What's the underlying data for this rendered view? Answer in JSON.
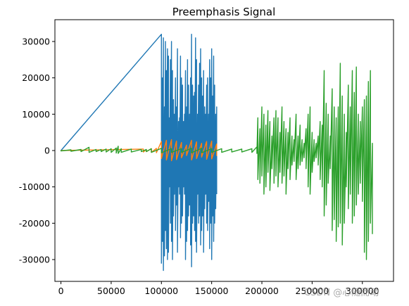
{
  "chart_data": {
    "type": "line",
    "title": "Preemphasis Signal",
    "xlabel": "",
    "ylabel": "",
    "xlim": [
      -6000,
      331000
    ],
    "ylim": [
      -36000,
      36000
    ],
    "x_ticks": [
      0,
      50000,
      100000,
      150000,
      200000,
      250000,
      300000
    ],
    "y_ticks": [
      -30000,
      -20000,
      -10000,
      0,
      10000,
      20000,
      30000
    ],
    "grid": false,
    "legend": "none",
    "series": [
      {
        "color": "#1f77b4",
        "x": [
          0,
          100000,
          101000,
          102000,
          103000,
          104000,
          105000,
          106000,
          107000,
          108000,
          109000,
          110000,
          111000,
          112000,
          113000,
          114000,
          115000,
          116000,
          117000,
          118000,
          119000,
          120000,
          121000,
          122000,
          123000,
          124000,
          125000,
          126000,
          127000,
          128000,
          129000,
          130000,
          131000,
          132000,
          133000,
          134000,
          135000,
          136000,
          137000,
          138000,
          139000,
          140000,
          141000,
          142000,
          143000,
          144000,
          145000,
          146000,
          147000,
          148000,
          149000,
          150000,
          151000,
          152000,
          153000,
          154000,
          155000
        ],
        "upper": [
          0,
          32000,
          20000,
          31000,
          12000,
          30000,
          22000,
          28000,
          26000,
          9000,
          25000,
          30000,
          22000,
          14000,
          10000,
          20000,
          12000,
          28000,
          8000,
          9000,
          26000,
          20000,
          18000,
          8000,
          10000,
          22000,
          12000,
          25000,
          18000,
          10000,
          20000,
          32000,
          18000,
          15000,
          16000,
          31000,
          25000,
          10000,
          18000,
          24000,
          28000,
          20000,
          15000,
          22000,
          12000,
          10000,
          18000,
          20000,
          10000,
          25000,
          20000,
          28000,
          15000,
          26000,
          18000,
          10000,
          12000
        ],
        "lower": [
          0,
          -31000,
          -25000,
          -33000,
          -29000,
          -22000,
          -27000,
          -30000,
          -28000,
          -10000,
          -20000,
          -25000,
          -30000,
          -18000,
          -12000,
          -22000,
          -15000,
          -28000,
          -10000,
          -12000,
          -24000,
          -20000,
          -18000,
          -10000,
          -12000,
          -30000,
          -25000,
          -22000,
          -18000,
          -15000,
          -26000,
          -32000,
          -20000,
          -18000,
          -22000,
          -25000,
          -28000,
          -12000,
          -20000,
          -18000,
          -26000,
          -22000,
          -18000,
          -28000,
          -16000,
          -12000,
          -20000,
          -22000,
          -14000,
          -27000,
          -20000,
          -30000,
          -18000,
          -25000,
          -20000,
          -16000,
          -12000
        ]
      },
      {
        "color": "#ff7f0e",
        "x": [
          0,
          82000,
          85000,
          90000,
          95000,
          100000,
          105000,
          110000,
          115000,
          120000,
          125000,
          130000,
          135000,
          140000,
          145000,
          150000,
          155000
        ],
        "upper": [
          0,
          400,
          300,
          500,
          600,
          2500,
          2800,
          3000,
          2600,
          2200,
          1500,
          2800,
          2400,
          2000,
          2500,
          2600,
          1800
        ],
        "lower": [
          0,
          -400,
          -300,
          -500,
          -600,
          -2200,
          -2600,
          -2800,
          -2500,
          -2000,
          -1400,
          -2600,
          -2200,
          -1800,
          -2400,
          -2300,
          -1500
        ]
      },
      {
        "color": "#2ca02c",
        "x": [
          0,
          10000,
          20000,
          28000,
          35000,
          40000,
          45000,
          50000,
          55000,
          57000,
          60000,
          70000,
          80000,
          85000,
          90000,
          100000,
          110000,
          120000,
          130000,
          140000,
          150000,
          160000,
          170000,
          180000,
          190000,
          195000,
          196000,
          198000,
          200000,
          202000,
          204000,
          206000,
          208000,
          210000,
          212000,
          214000,
          216000,
          218000,
          220000,
          222000,
          224000,
          226000,
          228000,
          230000,
          232000,
          234000,
          236000,
          238000,
          240000,
          242000,
          244000,
          246000,
          248000,
          250000,
          252000,
          254000,
          256000,
          258000,
          260000,
          262000,
          264000,
          266000,
          268000,
          270000,
          272000,
          274000,
          276000,
          278000,
          280000,
          282000,
          284000,
          286000,
          288000,
          290000,
          292000,
          294000,
          296000,
          298000,
          300000,
          302000,
          304000,
          306000,
          308000,
          310000
        ],
        "upper": [
          100,
          200,
          300,
          900,
          300,
          300,
          400,
          500,
          700,
          1200,
          500,
          400,
          300,
          300,
          500,
          600,
          500,
          500,
          600,
          600,
          500,
          500,
          400,
          400,
          500,
          1000,
          9000,
          6000,
          12000,
          10000,
          7000,
          11000,
          8000,
          4000,
          9000,
          11000,
          9000,
          5000,
          12000,
          8000,
          6000,
          5000,
          9000,
          4000,
          3000,
          10000,
          4000,
          7000,
          3000,
          2000,
          6000,
          10000,
          12000,
          5000,
          3000,
          2000,
          4000,
          8000,
          7000,
          22000,
          13000,
          10000,
          4000,
          17000,
          12000,
          9000,
          12000,
          24000,
          15000,
          10000,
          5000,
          18000,
          12000,
          22000,
          16000,
          23000,
          10000,
          8000,
          12000,
          14000,
          15000,
          19000,
          22000,
          2000
        ],
        "lower": [
          -100,
          -200,
          -300,
          -500,
          -300,
          -300,
          -400,
          -500,
          -700,
          -800,
          -500,
          -400,
          -300,
          -300,
          -500,
          -600,
          -500,
          -500,
          -600,
          -600,
          -500,
          -500,
          -400,
          -400,
          -500,
          -800,
          -8000,
          -9000,
          -7000,
          -12000,
          -10000,
          -6000,
          -11000,
          -5000,
          -9000,
          -7000,
          -10000,
          -6000,
          -9000,
          -7000,
          -12000,
          -5000,
          -8000,
          -4000,
          -3000,
          -8000,
          -5000,
          -4000,
          -3000,
          -2000,
          -5000,
          -10000,
          -12000,
          -6000,
          -3000,
          -2000,
          -4000,
          -8000,
          -10000,
          -18000,
          -15000,
          -9000,
          -5000,
          -22000,
          -19000,
          -25000,
          -21000,
          -20000,
          -26000,
          -20000,
          -10000,
          -16000,
          -12000,
          -20000,
          -18000,
          -15000,
          -12000,
          -9000,
          -14000,
          -28000,
          -30000,
          -25000,
          -20000,
          -23000
        ]
      }
    ]
  },
  "watermark": "CSDN @心随而动"
}
